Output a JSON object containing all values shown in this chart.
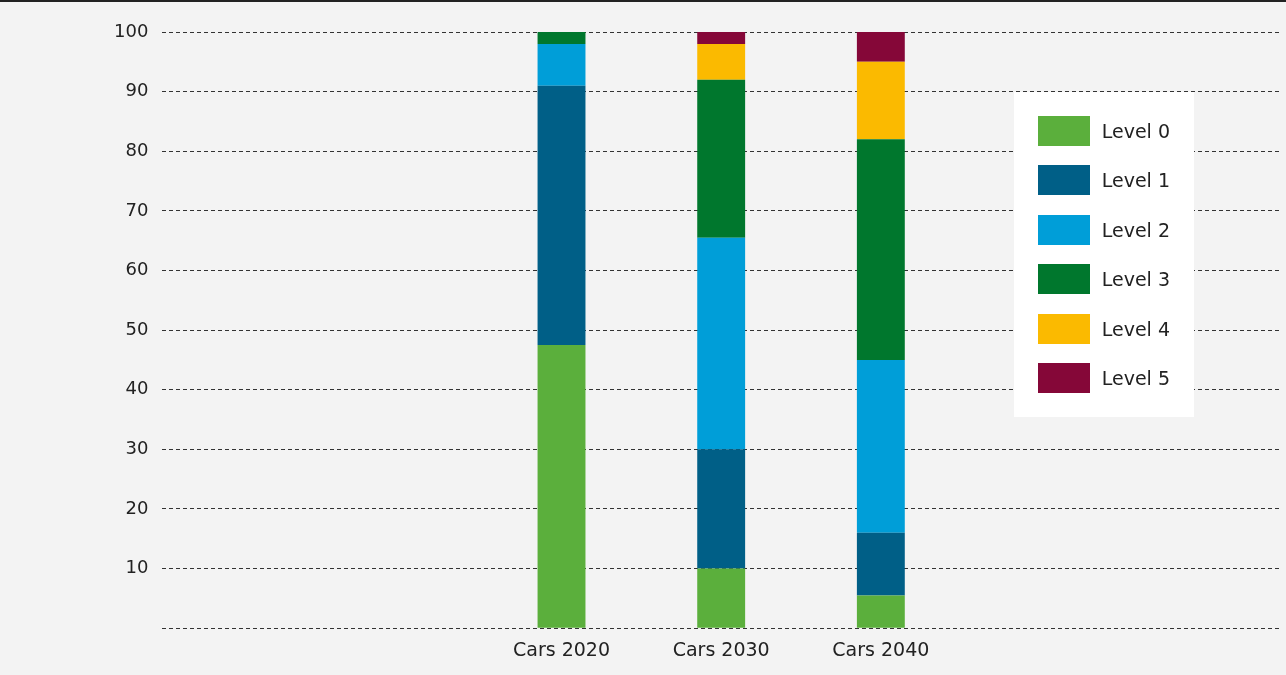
{
  "chart_data": {
    "type": "bar",
    "stacked": true,
    "categories": [
      null,
      null,
      "Cars 2020",
      "Cars 2030",
      "Cars 2040",
      null,
      null
    ],
    "series": [
      {
        "name": "Level 0",
        "color": "#5baf3c",
        "values": [
          null,
          null,
          47.5,
          10,
          5.5,
          null,
          null
        ]
      },
      {
        "name": "Level 1",
        "color": "#005f87",
        "values": [
          null,
          null,
          43.5,
          20,
          10.5,
          null,
          null
        ]
      },
      {
        "name": "Level 2",
        "color": "#009ed8",
        "values": [
          null,
          null,
          7,
          35.5,
          29,
          null,
          null
        ]
      },
      {
        "name": "Level 3",
        "color": "#00772d",
        "values": [
          null,
          null,
          2,
          26.5,
          37,
          null,
          null
        ]
      },
      {
        "name": "Level 4",
        "color": "#fbba00",
        "values": [
          null,
          null,
          null,
          6,
          13,
          null,
          null
        ]
      },
      {
        "name": "Level 5",
        "color": "#850738",
        "values": [
          null,
          null,
          null,
          2,
          5,
          null,
          null
        ]
      }
    ],
    "ylim": [
      0,
      100
    ],
    "yticks": [
      {
        "value": 0,
        "label": null
      },
      10,
      20,
      30,
      40,
      50,
      60,
      70,
      80,
      90,
      100
    ],
    "grid": "y",
    "legend": "top right"
  }
}
